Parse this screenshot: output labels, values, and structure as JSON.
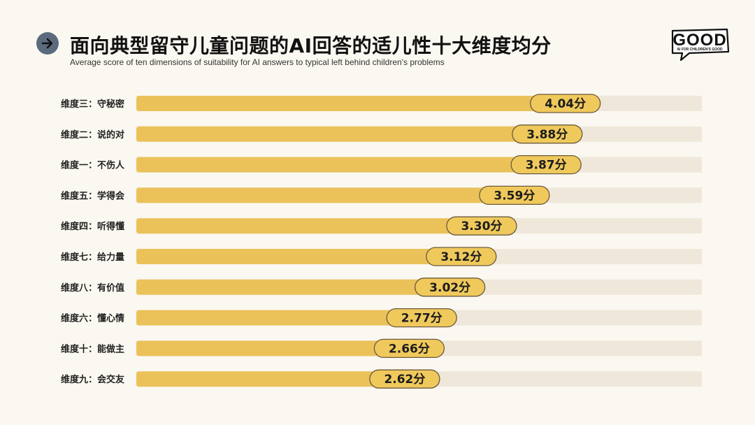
{
  "header": {
    "title": "面向典型留守儿童问题的AI回答的适儿性十大维度均分",
    "subtitle": "Average score of ten dimensions of suitability for AI answers to typical left behind children's problems",
    "icon": "arrow-right-icon"
  },
  "logo": {
    "text": "GOOD",
    "tagline": "AI FOR CHILDREN'S GOOD"
  },
  "colors": {
    "bar": "#ebc25a",
    "track": "#efe8da",
    "label_fill": "#f0c95c",
    "label_stroke": "#6b5a3b",
    "background": "#fbf8f1"
  },
  "chart_data": {
    "type": "bar",
    "orientation": "horizontal",
    "unit_suffix": "分",
    "xlim": [
      0,
      5
    ],
    "categories": [
      "维度三：守秘密",
      "维度二：说的对",
      "维度一：不伤人",
      "维度五：学得会",
      "维度四：听得懂",
      "维度七：给力量",
      "维度八：有价值",
      "维度六：懂心情",
      "维度十：能做主",
      "维度九：会交友"
    ],
    "values": [
      4.04,
      3.88,
      3.87,
      3.59,
      3.3,
      3.12,
      3.02,
      2.77,
      2.66,
      2.62
    ],
    "value_labels": [
      "4.04分",
      "3.88分",
      "3.87分",
      "3.59分",
      "3.30分",
      "3.12分",
      "3.02分",
      "2.77分",
      "2.66分",
      "2.62分"
    ],
    "grid": false,
    "legend": "none"
  }
}
